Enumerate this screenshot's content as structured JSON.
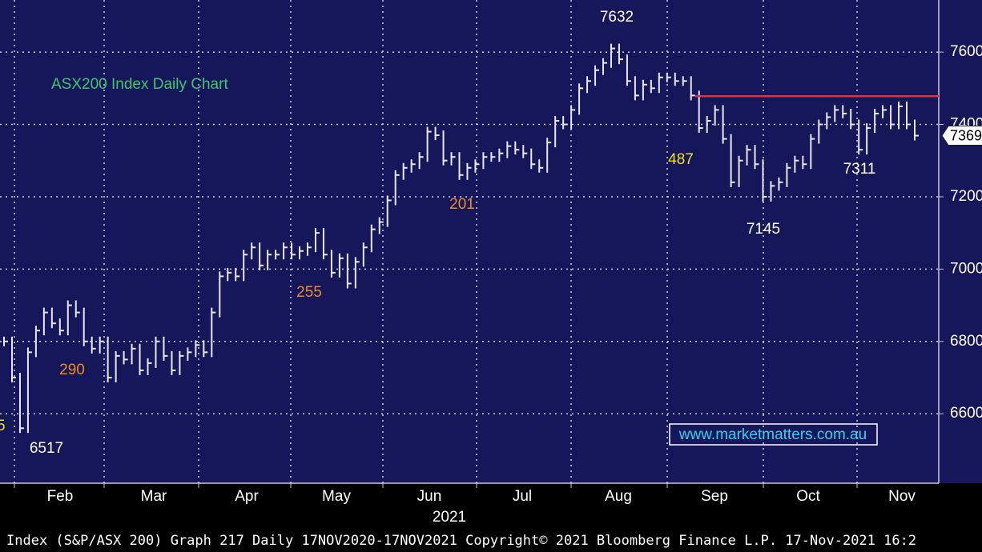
{
  "chart_data": {
    "type": "price-bars",
    "title": "ASX200 Index Daily Chart",
    "color": "#e8e8f0",
    "ylim": [
      6408,
      7744
    ],
    "yticks": [
      6600,
      6800,
      7000,
      7200,
      7400,
      7600
    ],
    "grid": true,
    "xtick_labels": [
      "Feb",
      "Mar",
      "Apr",
      "May",
      "Jun",
      "Jul",
      "Aug",
      "Sep",
      "Oct",
      "Nov"
    ],
    "year_label": "2021",
    "last_price": 7369,
    "resistance": {
      "value": 7478,
      "color": "#e0303a"
    },
    "annotations": [
      {
        "text": "7632",
        "color": "#ffffff"
      },
      {
        "text": "487",
        "color": "#f0e020"
      },
      {
        "text": "7311",
        "color": "#ffffff"
      },
      {
        "text": "7145",
        "color": "#ffffff"
      },
      {
        "text": "201",
        "color": "#f08a20"
      },
      {
        "text": "255",
        "color": "#f08a20"
      },
      {
        "text": "290",
        "color": "#f08a20"
      },
      {
        "text": "6517",
        "color": "#ffffff"
      },
      {
        "text": "5",
        "color": "#f0e020"
      }
    ],
    "watermark": "www.marketmatters.com.au",
    "footer": "Index (S&P/ASX 200) Graph 217  Daily 17NOV2020-17NOV2021  Copyright© 2021 Bloomberg Finance L.P.  17-Nov-2021 16:2",
    "values": [
      6800,
      6700,
      6560,
      6770,
      6830,
      6880,
      6850,
      6830,
      6900,
      6880,
      6800,
      6780,
      6800,
      6700,
      6760,
      6750,
      6780,
      6720,
      6740,
      6800,
      6760,
      6720,
      6760,
      6770,
      6790,
      6770,
      6880,
      6980,
      6990,
      6980,
      7040,
      7060,
      7010,
      7040,
      7040,
      7060,
      7040,
      7050,
      7060,
      7100,
      7040,
      6990,
      7030,
      6960,
      7020,
      7060,
      7110,
      7130,
      7190,
      7260,
      7280,
      7290,
      7310,
      7380,
      7370,
      7300,
      7310,
      7260,
      7280,
      7290,
      7310,
      7310,
      7320,
      7340,
      7330,
      7320,
      7290,
      7280,
      7350,
      7410,
      7400,
      7440,
      7500,
      7520,
      7550,
      7570,
      7610,
      7580,
      7520,
      7480,
      7510,
      7500,
      7530,
      7530,
      7520,
      7520,
      7480,
      7390,
      7410,
      7440,
      7360,
      7240,
      7300,
      7330,
      7290,
      7200,
      7230,
      7240,
      7280,
      7300,
      7290,
      7360,
      7400,
      7420,
      7440,
      7430,
      7400,
      7330,
      7390,
      7430,
      7440,
      7400,
      7450,
      7400,
      7369
    ]
  }
}
